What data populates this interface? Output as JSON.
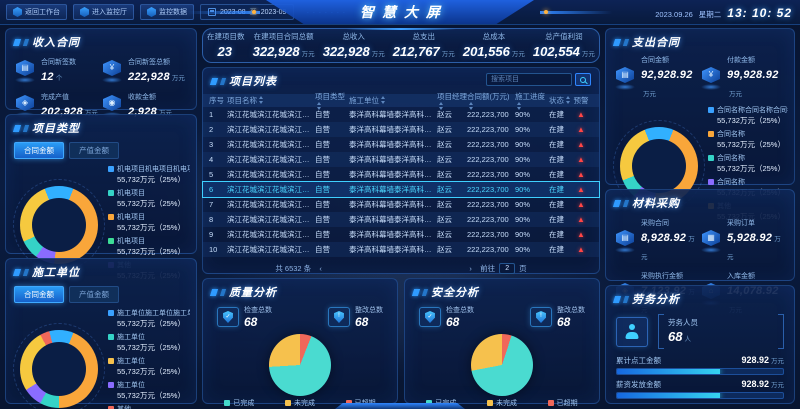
{
  "header": {
    "nav": [
      {
        "label": "返回工作台"
      },
      {
        "label": "进入监控厅"
      },
      {
        "label": "监控数据"
      }
    ],
    "date_start": "2023-08",
    "date_sep": "至",
    "date_end": "2023-09",
    "title": "智慧大屏",
    "date_text": "2023.09.26",
    "weekday": "星期二",
    "time": "13: 10: 52"
  },
  "summary_stats": [
    {
      "label": "在建项目数",
      "value": "23",
      "unit": ""
    },
    {
      "label": "在建项目合同总额",
      "value": "322,928",
      "unit": "万元"
    },
    {
      "label": "总收入",
      "value": "322,928",
      "unit": "万元"
    },
    {
      "label": "总支出",
      "value": "212,767",
      "unit": "万元"
    },
    {
      "label": "总成本",
      "value": "201,556",
      "unit": "万元"
    },
    {
      "label": "总产值利润",
      "value": "102,554",
      "unit": "万元"
    }
  ],
  "income_contract": {
    "title": "收入合同",
    "items": [
      {
        "label": "合同新签数",
        "value": "12",
        "unit": "个",
        "icon": "contract-count-icon",
        "glyph": "▤"
      },
      {
        "label": "合同新签总额",
        "value": "222,928",
        "unit": "万元",
        "icon": "contract-amount-icon",
        "glyph": "¥"
      },
      {
        "label": "完成产值",
        "value": "202,928",
        "unit": "万元",
        "icon": "output-value-icon",
        "glyph": "◈"
      },
      {
        "label": "收款金额",
        "value": "2,928",
        "unit": "万元",
        "icon": "collection-amount-icon",
        "glyph": "◉"
      }
    ]
  },
  "project_type": {
    "title": "项目类型",
    "tabs": [
      "合同金额",
      "产值金额"
    ],
    "legend": [
      {
        "label": "机电项目机电项目机电项...",
        "value": "55,732万元（25%）",
        "color": "#3aa1ff"
      },
      {
        "label": "机电项目",
        "value": "55,732万元（25%）",
        "color": "#35d3c7"
      },
      {
        "label": "机电项目",
        "value": "55,732万元（25%）",
        "color": "#f9a63a"
      },
      {
        "label": "机电项目",
        "value": "55,732万元（25%）",
        "color": "#3ddc97"
      },
      {
        "label": "其他",
        "value": "55,732万元（25%）",
        "color": "#8a6cff"
      }
    ]
  },
  "construction_unit": {
    "title": "施工单位",
    "tabs": [
      "合同金额",
      "产值金额"
    ],
    "legend": [
      {
        "label": "施工单位施工单位施工单...",
        "value": "55,732万元（25%）",
        "color": "#3aa1ff"
      },
      {
        "label": "施工单位",
        "value": "55,732万元（25%）",
        "color": "#35d3c7"
      },
      {
        "label": "施工单位",
        "value": "55,732万元（25%）",
        "color": "#f6c14d"
      },
      {
        "label": "施工单位",
        "value": "55,732万元（25%）",
        "color": "#8a6cff"
      },
      {
        "label": "其他",
        "value": "55,732万元（25%）",
        "color": "#f0685a"
      }
    ]
  },
  "project_list": {
    "title": "项目列表",
    "search_placeholder": "搜索项目",
    "columns": [
      "序号",
      "项目名称",
      "项目类型",
      "施工单位",
      "项目经理",
      "合同额(万元)",
      "施工进度",
      "状态",
      "预警"
    ],
    "rows": [
      {
        "no": "1",
        "name": "滨江花城滨江花城滨江二期项...",
        "type": "自营",
        "unit": "泰洋高科幕墙泰洋高科有限公...",
        "manager": "赵云",
        "amount": "222,223,700",
        "progress": "90%",
        "status": "在建",
        "selected": false
      },
      {
        "no": "2",
        "name": "滨江花城滨江花城滨江二期项...",
        "type": "自营",
        "unit": "泰洋高科幕墙泰洋高科有限公...",
        "manager": "赵云",
        "amount": "222,223,700",
        "progress": "90%",
        "status": "在建",
        "selected": false
      },
      {
        "no": "3",
        "name": "滨江花城滨江花城滨江二期项...",
        "type": "自营",
        "unit": "泰洋高科幕墙泰洋高科有限公...",
        "manager": "赵云",
        "amount": "222,223,700",
        "progress": "90%",
        "status": "在建",
        "selected": false
      },
      {
        "no": "4",
        "name": "滨江花城滨江花城滨江二期项...",
        "type": "自营",
        "unit": "泰洋高科幕墙泰洋高科有限公...",
        "manager": "赵云",
        "amount": "222,223,700",
        "progress": "90%",
        "status": "在建",
        "selected": false
      },
      {
        "no": "5",
        "name": "滨江花城滨江花城滨江二期项...",
        "type": "自营",
        "unit": "泰洋高科幕墙泰洋高科有限公...",
        "manager": "赵云",
        "amount": "222,223,700",
        "progress": "90%",
        "status": "在建",
        "selected": false
      },
      {
        "no": "6",
        "name": "滨江花城滨江花城滨江二期项...",
        "type": "自营",
        "unit": "泰洋高科幕墙泰洋高科有限公...",
        "manager": "赵云",
        "amount": "222,223,700",
        "progress": "90%",
        "status": "在建",
        "selected": true
      },
      {
        "no": "7",
        "name": "滨江花城滨江花城滨江二期项...",
        "type": "自营",
        "unit": "泰洋高科幕墙泰洋高科有限公...",
        "manager": "赵云",
        "amount": "222,223,700",
        "progress": "90%",
        "status": "在建",
        "selected": false
      },
      {
        "no": "8",
        "name": "滨江花城滨江花城滨江二期项...",
        "type": "自营",
        "unit": "泰洋高科幕墙泰洋高科有限公...",
        "manager": "赵云",
        "amount": "222,223,700",
        "progress": "90%",
        "status": "在建",
        "selected": false
      },
      {
        "no": "9",
        "name": "滨江花城滨江花城滨江二期项...",
        "type": "自营",
        "unit": "泰洋高科幕墙泰洋高科有限公...",
        "manager": "赵云",
        "amount": "222,223,700",
        "progress": "90%",
        "status": "在建",
        "selected": false
      },
      {
        "no": "10",
        "name": "滨江花城滨江花城滨江二期项...",
        "type": "自营",
        "unit": "泰洋高科幕墙泰洋高科有限公...",
        "manager": "赵云",
        "amount": "222,223,700",
        "progress": "90%",
        "status": "在建",
        "selected": false
      }
    ],
    "pagination": {
      "total": "共 6532 条",
      "prev": "‹",
      "next": "›",
      "pages": [
        {
          "label": "1",
          "active": true
        },
        {
          "label": "...",
          "active": false
        },
        {
          "label": "3",
          "active": false
        },
        {
          "label": "4",
          "active": false
        },
        {
          "label": "5",
          "active": false
        },
        {
          "label": "6",
          "active": false
        },
        {
          "label": "7",
          "active": false
        },
        {
          "label": "...",
          "active": false
        },
        {
          "label": "10",
          "active": false
        }
      ],
      "jump_label": "前往",
      "jump_value": "2",
      "jump_unit": "页"
    }
  },
  "quality_analysis": {
    "title": "质量分析",
    "stats": [
      {
        "label": "检查总数",
        "value": "68",
        "icon": "shield-check-icon",
        "glyph": "✓"
      },
      {
        "label": "整改总数",
        "value": "68",
        "icon": "shield-fix-icon",
        "glyph": "!"
      }
    ],
    "legend": [
      {
        "label": "已完成",
        "value": "75",
        "color": "#45d9cb"
      },
      {
        "label": "未完成",
        "value": "15",
        "color": "#f6c14d"
      },
      {
        "label": "已超期",
        "value": "10",
        "color": "#f0685a"
      }
    ]
  },
  "safety_analysis": {
    "title": "安全分析",
    "stats": [
      {
        "label": "检查总数",
        "value": "68",
        "icon": "shield-check-icon",
        "glyph": "✓"
      },
      {
        "label": "整改总数",
        "value": "68",
        "icon": "shield-fix-icon",
        "glyph": "!"
      }
    ],
    "legend": [
      {
        "label": "已完成",
        "value": "39",
        "color": "#45d9cb"
      },
      {
        "label": "未完成",
        "value": "26",
        "color": "#f6c14d"
      },
      {
        "label": "已超期",
        "value": "26",
        "color": "#f0685a"
      }
    ]
  },
  "expense_contract": {
    "title": "支出合同",
    "items": [
      {
        "label": "合同金额",
        "value": "92,928.92",
        "unit": "万元",
        "icon": "contract-amount-icon",
        "glyph": "▤"
      },
      {
        "label": "付款金额",
        "value": "99,928.92",
        "unit": "万元",
        "icon": "payment-amount-icon",
        "glyph": "¥"
      }
    ],
    "legend": [
      {
        "label": "合同名称合同名称合同名...",
        "value": "55,732万元（25%）",
        "color": "#3aa1ff"
      },
      {
        "label": "合同名称",
        "value": "55,732万元（25%）",
        "color": "#f9a63a"
      },
      {
        "label": "合同名称",
        "value": "55,732万元（25%）",
        "color": "#35d3c7"
      },
      {
        "label": "合同名称",
        "value": "55,732万元（25%）",
        "color": "#8a6cff"
      },
      {
        "label": "其他",
        "value": "55,732万元（25%）",
        "color": "#f6c14d"
      }
    ]
  },
  "material_purchase": {
    "title": "材料采购",
    "items": [
      {
        "label": "采购合同",
        "value": "8,928.92",
        "unit": "万元",
        "icon": "purchase-contract-icon",
        "glyph": "▤"
      },
      {
        "label": "采购订单",
        "value": "5,928.92",
        "unit": "万元",
        "icon": "purchase-order-icon",
        "glyph": "▦"
      },
      {
        "label": "采购执行金额",
        "value": "7,123.92",
        "unit": "万元",
        "icon": "purchase-execute-icon",
        "glyph": "◈"
      },
      {
        "label": "入库金额",
        "value": "14,078.92",
        "unit": "万元",
        "icon": "warehouse-in-icon",
        "glyph": "⌂"
      }
    ]
  },
  "labor_analysis": {
    "title": "劳务分析",
    "person_label": "劳务人员",
    "person_value": "68",
    "person_unit": "人",
    "bars": [
      {
        "label": "累计点工金额",
        "value": "928.92",
        "unit": "万元",
        "percent": 62
      },
      {
        "label": "薪资发放金额",
        "value": "928.92",
        "unit": "万元",
        "percent": 62
      }
    ]
  }
}
